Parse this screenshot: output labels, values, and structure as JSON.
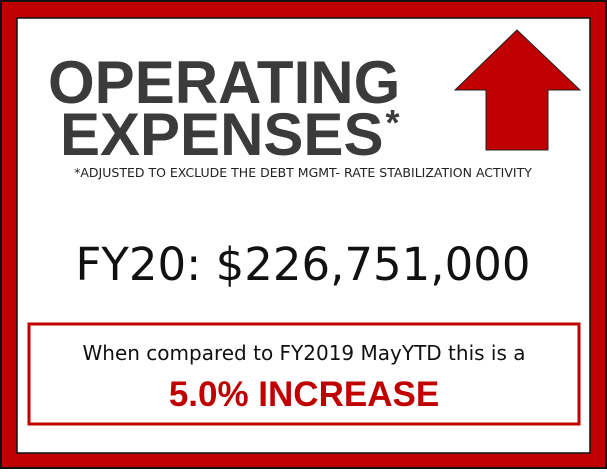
{
  "title": {
    "line1": "OPERATING",
    "line2": "EXPENSES",
    "asterisk": "*"
  },
  "footnote": "*ADJUSTED TO EXCLUDE THE DEBT MGMT- RATE STABILIZATION ACTIVITY",
  "amount": "FY20: $226,751,000",
  "comparison": {
    "text": "When compared to FY2019 MayYTD this is a",
    "result": "5.0% INCREASE"
  }
}
